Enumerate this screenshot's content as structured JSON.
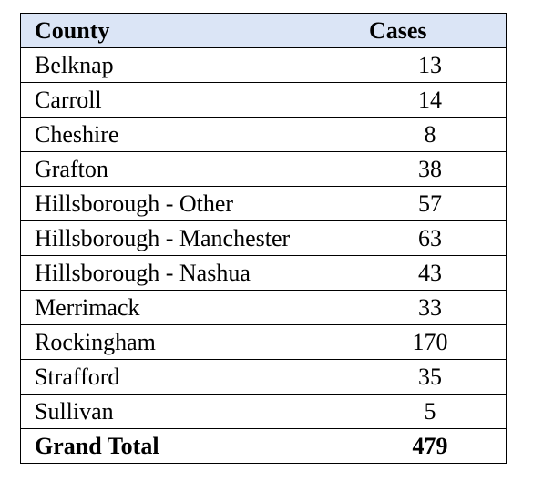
{
  "table": {
    "header": [
      "County",
      "Cases"
    ],
    "rows": [
      [
        "Belknap",
        13
      ],
      [
        "Carroll",
        14
      ],
      [
        "Cheshire",
        8
      ],
      [
        "Grafton",
        38
      ],
      [
        "Hillsborough - Other",
        57
      ],
      [
        "Hillsborough - Manchester",
        63
      ],
      [
        "Hillsborough - Nashua",
        43
      ],
      [
        "Merrimack",
        33
      ],
      [
        "Rockingham",
        170
      ],
      [
        "Strafford",
        35
      ],
      [
        "Sullivan",
        5
      ]
    ],
    "total": [
      "Grand Total",
      479
    ]
  }
}
